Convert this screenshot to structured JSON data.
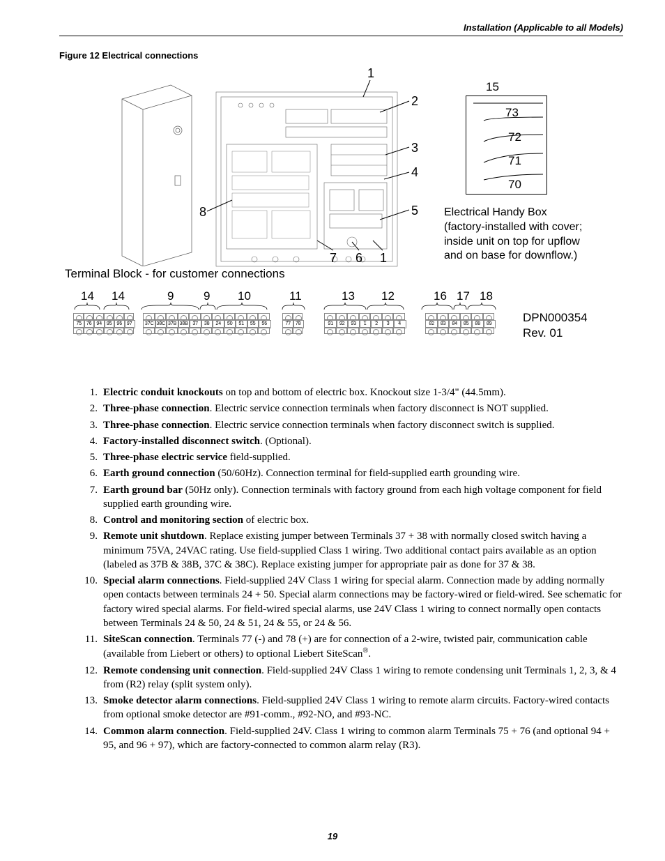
{
  "header": {
    "running": "Installation (Applicable to all Models)"
  },
  "figure": {
    "caption": "Figure 12   Electrical connections",
    "tb_label": "Terminal Block - for customer connections",
    "handy_box_lines": [
      "Electrical Handy Box",
      "(factory-installed with cover;",
      "inside unit on top for upflow",
      "and on base for downflow.)"
    ],
    "handy_labels": [
      "15",
      "73",
      "72",
      "71",
      "70"
    ],
    "main_callouts": {
      "1": "1",
      "2": "2",
      "3": "3",
      "4": "4",
      "5": "5",
      "6": "6",
      "7": "7",
      "8": "8",
      "1b": "1"
    },
    "term_groups": [
      "14",
      "14",
      "9",
      "9",
      "10",
      "11",
      "13",
      "12",
      "16",
      "17",
      "18"
    ],
    "dpn": [
      "DPN000354",
      "Rev. 01"
    ],
    "tb": {
      "b1": [
        "75",
        "76",
        "94",
        "95",
        "96",
        "97"
      ],
      "b2": [
        "37C",
        "38C",
        "37B",
        "38B",
        "37",
        "38",
        "24",
        "50",
        "51",
        "55",
        "56"
      ],
      "b3": [
        "77",
        "78"
      ],
      "b4": [
        "91",
        "92",
        "93",
        "1",
        "2",
        "3",
        "4"
      ],
      "b5": [
        "82",
        "83",
        "84",
        "85",
        "88",
        "89"
      ]
    }
  },
  "notes": [
    {
      "n": "1.",
      "html": "<b>Electric conduit knockouts</b> on top and bottom of electric box. Knockout size 1-3/4\" (44.5mm)."
    },
    {
      "n": "2.",
      "html": "<b>Three-phase connection</b>. Electric service connection terminals when factory disconnect is NOT supplied."
    },
    {
      "n": "3.",
      "html": "<b>Three-phase connection</b>. Electric service connection terminals when factory disconnect switch is supplied."
    },
    {
      "n": "4.",
      "html": "<b>Factory-installed disconnect switch</b>. (Optional)."
    },
    {
      "n": "5.",
      "html": "<b>Three-phase electric service</b> field-supplied."
    },
    {
      "n": "6.",
      "html": "<b>Earth ground connection</b> (50/60Hz). Connection terminal for field-supplied earth grounding wire."
    },
    {
      "n": "7.",
      "html": "<b>Earth ground bar</b> (50Hz only). Connection terminals with factory ground from each high voltage component for field supplied earth grounding wire."
    },
    {
      "n": "8.",
      "html": "<b>Control and monitoring section</b> of electric box."
    },
    {
      "n": "9.",
      "html": "<b>Remote unit shutdown</b>. Replace existing jumper between Terminals 37 + 38 with normally closed switch having a minimum 75VA, 24VAC rating. Use field-supplied Class 1 wiring. Two additional contact pairs available as an option (labeled as 37B &amp; 38B, 37C &amp; 38C). Replace existing jumper for appropriate pair as done for 37 &amp; 38."
    },
    {
      "n": "10.",
      "html": "<b>Special alarm connections</b>. Field-supplied 24V Class 1 wiring for special alarm. Connection made by adding normally open contacts between terminals 24 + 50. Special alarm connections may be factory-wired or field-wired. See schematic for factory wired special alarms. For field-wired special alarms, use 24V Class 1 wiring to connect normally open contacts between Terminals 24 &amp; 50, 24 &amp; 51, 24 &amp; 55, or 24 &amp; 56."
    },
    {
      "n": "11.",
      "html": "<b>SiteScan connection</b>. Terminals 77 (-) and 78 (+) are for connection of a 2-wire, twisted pair, communication cable (available from Liebert or others) to optional Liebert SiteScan<span class=\"sup\">®</span>."
    },
    {
      "n": "12.",
      "html": "<b>Remote condensing unit connection</b>. Field-supplied 24V Class 1 wiring to remote condensing unit Terminals 1, 2, 3, &amp; 4 from (R2) relay (split system only)."
    },
    {
      "n": "13.",
      "html": "<b>Smoke detector alarm connections</b>. Field-supplied 24V Class 1 wiring to remote alarm circuits. Factory-wired contacts from optional smoke detector are #91-comm., #92-NO, and #93-NC."
    },
    {
      "n": "14.",
      "html": "<b>Common alarm connection</b>. Field-supplied 24V. Class 1 wiring to common alarm Terminals 75 + 76 (and optional 94 + 95, and 96 + 97), which are factory-connected to common alarm relay (R3)."
    }
  ],
  "page_number": "19"
}
